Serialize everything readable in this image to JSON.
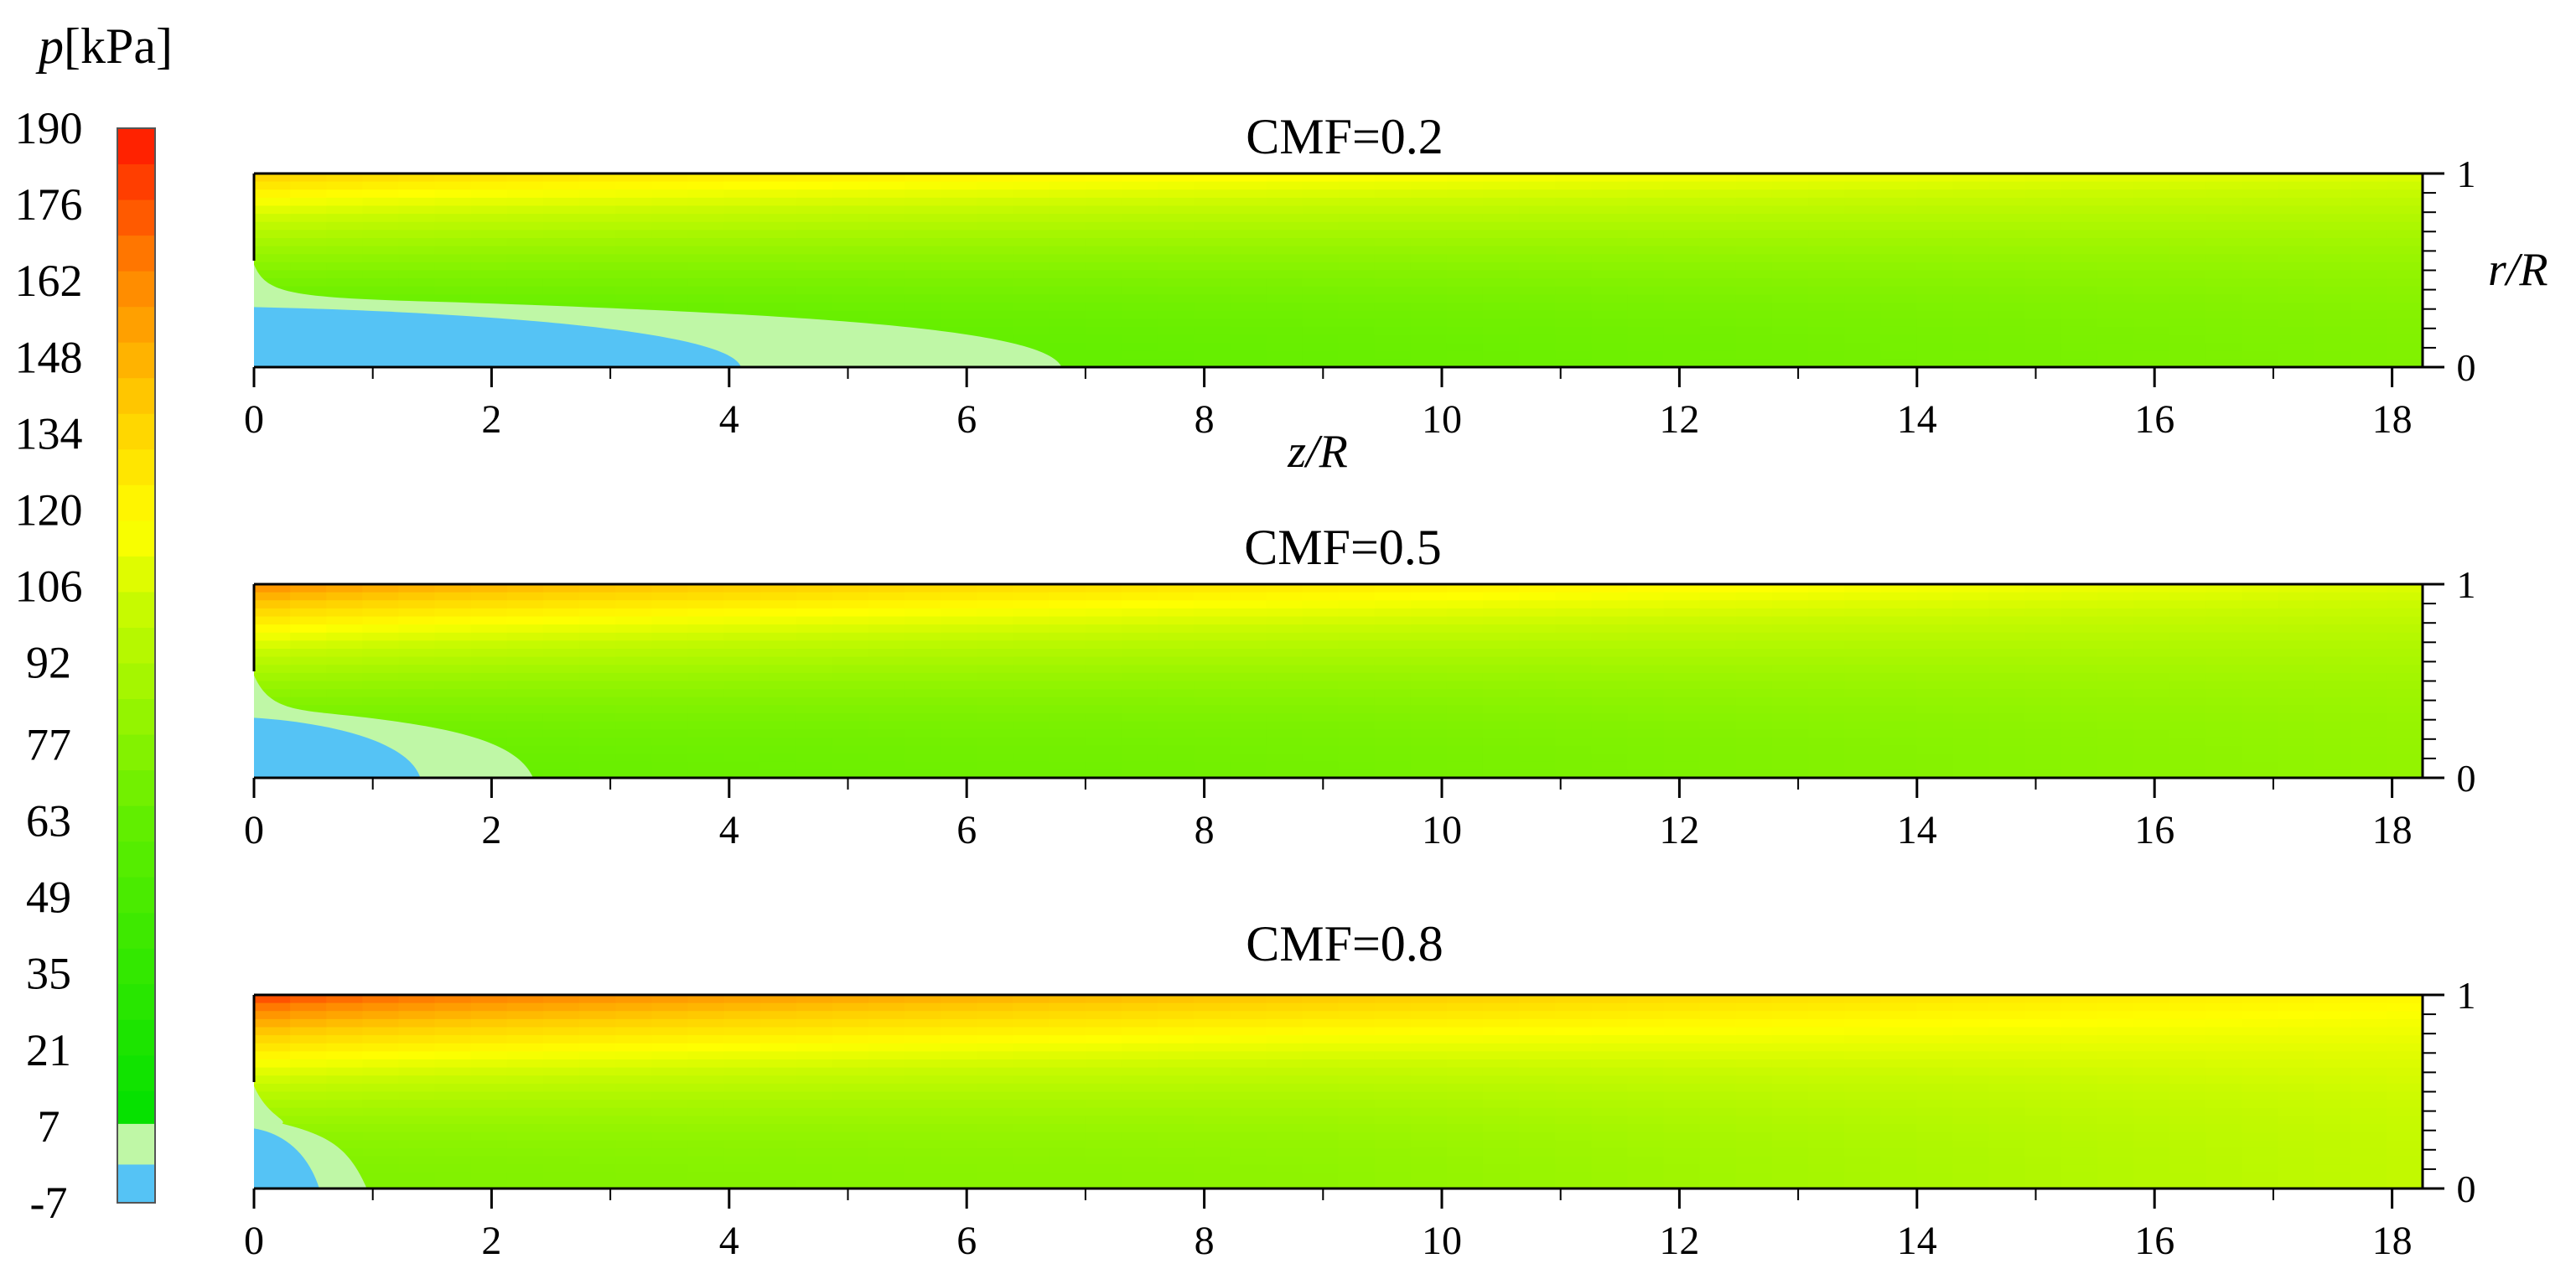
{
  "colorbar": {
    "label_var": "p",
    "label_unit": "[kPa]",
    "ticks": [
      190,
      176,
      162,
      148,
      134,
      120,
      106,
      92,
      77,
      63,
      49,
      35,
      21,
      7,
      -7
    ],
    "min": -7,
    "max": 190
  },
  "chart_data": [
    {
      "type": "heatmap",
      "title": "CMF=0.2",
      "xlabel": "z/R",
      "ylabel": "r/R",
      "xticks": [
        0,
        2,
        4,
        6,
        8,
        10,
        12,
        14,
        16,
        18
      ],
      "yticks": [
        0,
        1
      ],
      "xlim": [
        0,
        18.3
      ],
      "ylim": [
        0,
        1
      ],
      "cavity_blue_length_zR": 4.1,
      "cavity_lightgreen_length_zR": 6.8,
      "pressure_kPa": {
        "wall_inlet": 140,
        "wall_outlet": 108,
        "axis_mid": 65,
        "axis_outlet": 75
      }
    },
    {
      "type": "heatmap",
      "title": "CMF=0.5",
      "xlabel": "",
      "ylabel": "",
      "xticks": [
        0,
        2,
        4,
        6,
        8,
        10,
        12,
        14,
        16,
        18
      ],
      "yticks": [
        0,
        1
      ],
      "xlim": [
        0,
        18.3
      ],
      "ylim": [
        0,
        1
      ],
      "cavity_blue_length_zR": 1.4,
      "cavity_lightgreen_length_zR": 2.35,
      "pressure_kPa": {
        "wall_inlet": 165,
        "wall_outlet": 108,
        "axis_mid": 70,
        "axis_outlet": 82
      }
    },
    {
      "type": "heatmap",
      "title": "CMF=0.8",
      "xlabel": "",
      "ylabel": "",
      "xticks": [
        0,
        2,
        4,
        6,
        8,
        10,
        12,
        14,
        16,
        18
      ],
      "yticks": [
        0,
        1
      ],
      "xlim": [
        0,
        18.3
      ],
      "ylim": [
        0,
        1
      ],
      "cavity_blue_length_zR": 0.55,
      "cavity_lightgreen_length_zR": 0.95,
      "pressure_kPa": {
        "wall_inlet": 185,
        "wall_outlet": 120,
        "axis_mid": 80,
        "axis_outlet": 100
      }
    }
  ]
}
